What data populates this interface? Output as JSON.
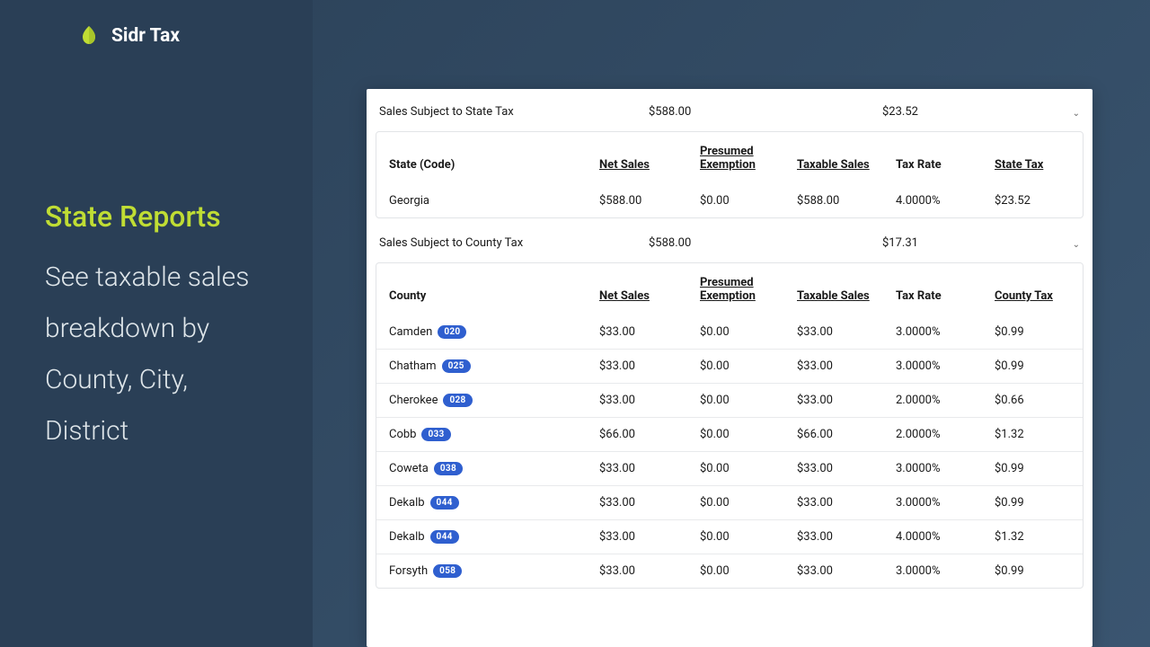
{
  "brand": {
    "name": "Sidr Tax"
  },
  "sidebar": {
    "heading": "State Reports",
    "subheading": "See taxable sales breakdown by County, City, District"
  },
  "colors": {
    "accent": "#c0dd34",
    "badge_bg": "#2f5fcf",
    "card_bg": "#ffffff",
    "border": "#e2e4e7"
  },
  "state_section": {
    "title": "Sales Subject to State Tax",
    "total_sales": "$588.00",
    "total_tax": "$23.52",
    "columns": {
      "name": "State (Code)",
      "net": "Net Sales",
      "exemption_l1": "Presumed",
      "exemption_l2": "Exemption",
      "taxable": "Taxable Sales",
      "rate": "Tax Rate",
      "tax": "State Tax"
    },
    "rows": [
      {
        "name": "Georgia",
        "net": "$588.00",
        "exm": "$0.00",
        "txs": "$588.00",
        "rate": "4.0000%",
        "tax": "$23.52"
      }
    ]
  },
  "county_section": {
    "title": "Sales Subject to County Tax",
    "total_sales": "$588.00",
    "total_tax": "$17.31",
    "columns": {
      "name": "County",
      "net": "Net Sales",
      "exemption_l1": "Presumed",
      "exemption_l2": "Exemption",
      "taxable": "Taxable Sales",
      "rate": "Tax Rate",
      "tax": "County Tax"
    },
    "rows": [
      {
        "name": "Camden",
        "code": "020",
        "net": "$33.00",
        "exm": "$0.00",
        "txs": "$33.00",
        "rate": "3.0000%",
        "tax": "$0.99"
      },
      {
        "name": "Chatham",
        "code": "025",
        "net": "$33.00",
        "exm": "$0.00",
        "txs": "$33.00",
        "rate": "3.0000%",
        "tax": "$0.99"
      },
      {
        "name": "Cherokee",
        "code": "028",
        "net": "$33.00",
        "exm": "$0.00",
        "txs": "$33.00",
        "rate": "2.0000%",
        "tax": "$0.66"
      },
      {
        "name": "Cobb",
        "code": "033",
        "net": "$66.00",
        "exm": "$0.00",
        "txs": "$66.00",
        "rate": "2.0000%",
        "tax": "$1.32"
      },
      {
        "name": "Coweta",
        "code": "038",
        "net": "$33.00",
        "exm": "$0.00",
        "txs": "$33.00",
        "rate": "3.0000%",
        "tax": "$0.99"
      },
      {
        "name": "Dekalb",
        "code": "044",
        "net": "$33.00",
        "exm": "$0.00",
        "txs": "$33.00",
        "rate": "3.0000%",
        "tax": "$0.99"
      },
      {
        "name": "Dekalb",
        "code": "044",
        "net": "$33.00",
        "exm": "$0.00",
        "txs": "$33.00",
        "rate": "4.0000%",
        "tax": "$1.32"
      },
      {
        "name": "Forsyth",
        "code": "058",
        "net": "$33.00",
        "exm": "$0.00",
        "txs": "$33.00",
        "rate": "3.0000%",
        "tax": "$0.99"
      }
    ]
  }
}
